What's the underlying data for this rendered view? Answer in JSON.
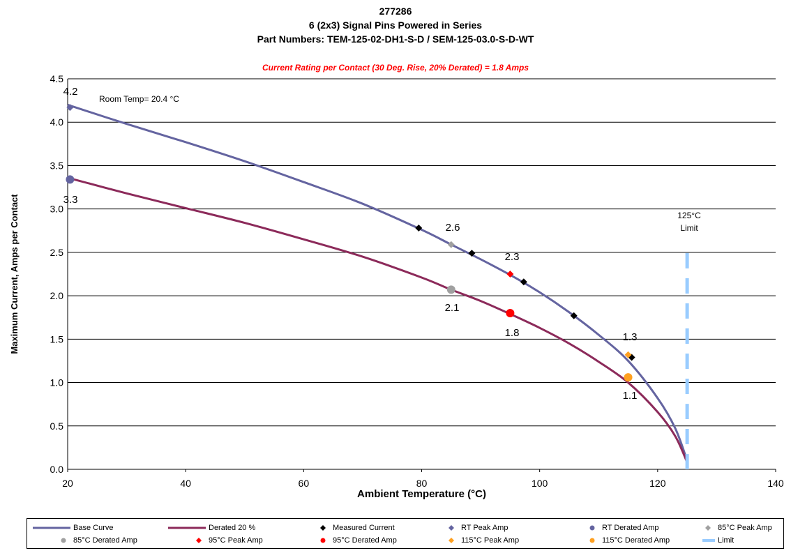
{
  "chart_data": {
    "type": "line",
    "title_lines": [
      "277286",
      "6 (2x3) Signal Pins Powered in Series",
      "Part Numbers: TEM-125-02-DH1-S-D / SEM-125-03.0-S-D-WT"
    ],
    "subtitle": "Current Rating per Contact (30 Deg. Rise, 20% Derated)  = 1.8 Amps",
    "xlabel": "Ambient Temperature (°C)",
    "ylabel": "Maximum Current, Amps per Contact",
    "xlim": [
      20,
      140
    ],
    "ylim": [
      0,
      4.5
    ],
    "x_ticks": [
      "20",
      "40",
      "60",
      "80",
      "100",
      "120",
      "140"
    ],
    "y_ticks": [
      "0.0",
      "0.5",
      "1.0",
      "1.5",
      "2.0",
      "2.5",
      "3.0",
      "3.5",
      "4.0",
      "4.5"
    ],
    "grid": "horizontal",
    "annotations": {
      "room_temp": "Room Temp= 20.4 °C",
      "limit_line1": "125°C",
      "limit_line2": "Limit",
      "v42": "4.2",
      "v33": "3.3",
      "v26": "2.6",
      "v21": "2.1",
      "v23": "2.3",
      "v18": "1.8",
      "v13": "1.3",
      "v11": "1.1"
    },
    "series": [
      {
        "name": "Base Curve",
        "color": "#6464a0",
        "x": [
          20,
          30,
          40,
          50,
          60,
          70,
          80,
          85,
          90,
          95,
          100,
          105,
          110,
          115,
          120,
          123,
          125
        ],
        "y": [
          4.2,
          3.98,
          3.77,
          3.55,
          3.31,
          3.06,
          2.76,
          2.59,
          2.42,
          2.24,
          2.04,
          1.81,
          1.55,
          1.25,
          0.82,
          0.47,
          0.1
        ]
      },
      {
        "name": "Derated 20 %",
        "color": "#8c2a5a",
        "x": [
          20,
          30,
          40,
          50,
          60,
          70,
          80,
          85,
          90,
          95,
          100,
          105,
          110,
          115,
          120,
          123,
          125
        ],
        "y": [
          3.36,
          3.18,
          3.01,
          2.84,
          2.65,
          2.45,
          2.21,
          2.07,
          1.94,
          1.79,
          1.63,
          1.45,
          1.24,
          1.0,
          0.66,
          0.38,
          0.08
        ]
      },
      {
        "name": "Measured Current",
        "color": "#000000",
        "marker": "diamond",
        "x": [
          79.5,
          88.5,
          97.3,
          105.8,
          115.6
        ],
        "y": [
          2.78,
          2.49,
          2.16,
          1.77,
          1.29
        ]
      },
      {
        "name": "RT Peak Amp",
        "color": "#6464a0",
        "marker": "diamond",
        "x": [
          20.4
        ],
        "y": [
          4.17
        ]
      },
      {
        "name": "RT Derated Amp",
        "color": "#6464a0",
        "marker": "circle",
        "x": [
          20.4
        ],
        "y": [
          3.34
        ]
      },
      {
        "name": "85°C Peak Amp",
        "color": "#a0a0a0",
        "marker": "diamond",
        "x": [
          85
        ],
        "y": [
          2.59
        ]
      },
      {
        "name": "85°C Derated Amp",
        "color": "#a0a0a0",
        "marker": "circle",
        "x": [
          85
        ],
        "y": [
          2.07
        ]
      },
      {
        "name": "95°C Peak Amp",
        "color": "#ff0000",
        "marker": "diamond",
        "x": [
          95
        ],
        "y": [
          2.25
        ]
      },
      {
        "name": "95°C Derated Amp",
        "color": "#ff0000",
        "marker": "circle",
        "x": [
          95
        ],
        "y": [
          1.8
        ]
      },
      {
        "name": "115°C Peak Amp",
        "color": "#ffa020",
        "marker": "diamond",
        "x": [
          115
        ],
        "y": [
          1.32
        ]
      },
      {
        "name": "115°C Derated Amp",
        "color": "#ffa020",
        "marker": "circle",
        "x": [
          115
        ],
        "y": [
          1.06
        ]
      },
      {
        "name": "Limit",
        "color": "#99ccff",
        "dashed": true,
        "x": [
          125,
          125
        ],
        "y": [
          0,
          2.55
        ]
      }
    ]
  }
}
